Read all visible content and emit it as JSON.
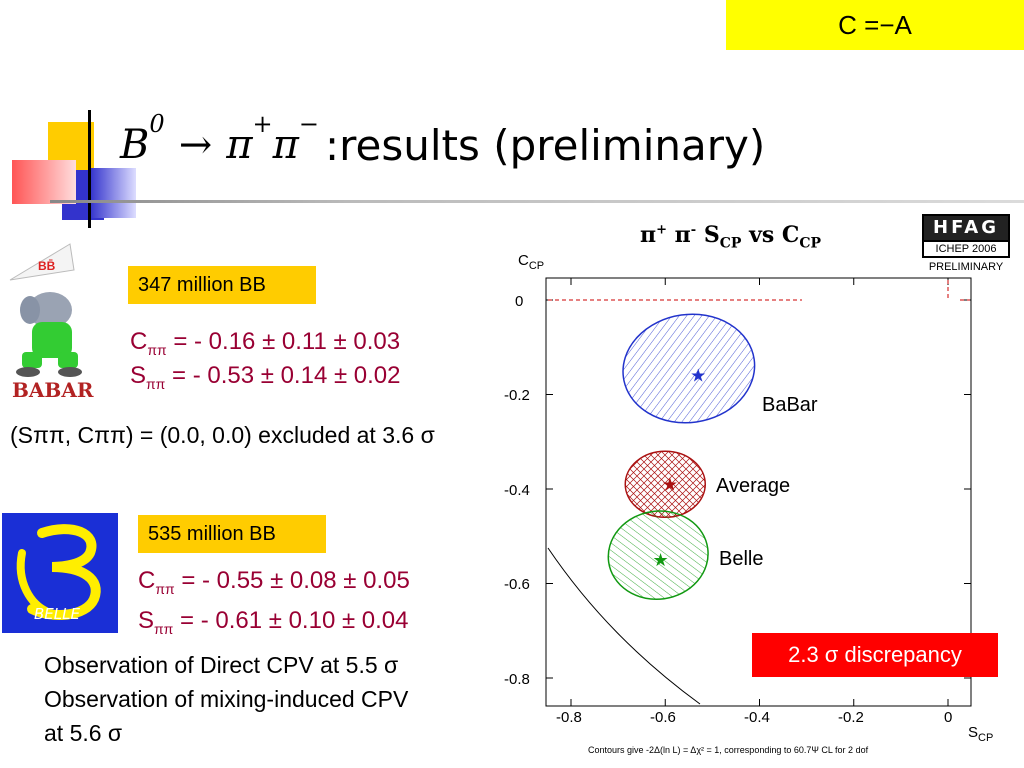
{
  "header": {
    "corner_label": "C =−A",
    "title_math": {
      "b": "B",
      "b_sup": "0",
      "arrow": "→",
      "pi1": "π",
      "pi1_sup": "+",
      "pi2": "π",
      "pi2_sup": "−"
    },
    "title_text": ":results (preliminary)"
  },
  "babar": {
    "logo_text": "BABAR",
    "count": "347 million BB",
    "c_line": {
      "label": "C",
      "sub": "ππ",
      "value": " = - 0.16 ± 0.11 ± 0.03"
    },
    "s_line": {
      "label": "S",
      "sub": "ππ",
      "value": " = - 0.53 ± 0.14 ± 0.02"
    },
    "exclusion": "(Sππ, Cππ) = (0.0, 0.0) excluded at 3.6 σ"
  },
  "belle": {
    "logo_text": "BELLE",
    "count": "535 million BB",
    "c_line": {
      "label": "C",
      "sub": "ππ",
      "value": " = - 0.55 ± 0.08 ± 0.05"
    },
    "s_line": {
      "label": "S",
      "sub": "ππ",
      "value": " = - 0.61 ± 0.10 ± 0.04"
    },
    "observation1": "Observation of Direct CPV at 5.5 σ",
    "observation2": "Observation of mixing-induced CPV",
    "observation3": "at 5.6 σ"
  },
  "hfag": {
    "top": "HFAG",
    "mid": "ICHEP 2006",
    "bottom": "PRELIMINARY"
  },
  "plot": {
    "title_prefix": "π",
    "title_plus": "+",
    "title_pi2": " π",
    "title_minus": "-",
    "title_s": " S",
    "title_s_sub": "CP",
    "title_vs": " vs C",
    "title_c_sub": "CP",
    "ylabel": "C",
    "ylabel_sub": "CP",
    "xlabel": "S",
    "xlabel_sub": "CP",
    "yticks": [
      "0",
      "-0.2",
      "-0.4",
      "-0.6",
      "-0.8"
    ],
    "xticks": [
      "-0.8",
      "-0.6",
      "-0.4",
      "-0.2",
      "0"
    ],
    "labels": {
      "babar": "BaBar",
      "average": "Average",
      "belle": "Belle"
    },
    "discrepancy": "2.3 σ  discrepancy",
    "footnote": "Contours give -2Δ(ln L) = Δχ² = 1, corresponding to 60.7Ψ CL for 2 dof",
    "colors": {
      "babar": "#2233cc",
      "average": "#aa1111",
      "belle": "#119911"
    }
  },
  "chart_data": {
    "type": "scatter",
    "title": "π+ π- SCP vs CCP",
    "xlabel": "SCP",
    "ylabel": "CCP",
    "xlim": [
      -0.88,
      0.05
    ],
    "ylim": [
      -0.88,
      0.04
    ],
    "series": [
      {
        "name": "BaBar",
        "x": [
          -0.53
        ],
        "y": [
          -0.16
        ]
      },
      {
        "name": "Average",
        "x": [
          -0.59
        ],
        "y": [
          -0.39
        ]
      },
      {
        "name": "Belle",
        "x": [
          -0.61
        ],
        "y": [
          -0.55
        ]
      }
    ]
  }
}
